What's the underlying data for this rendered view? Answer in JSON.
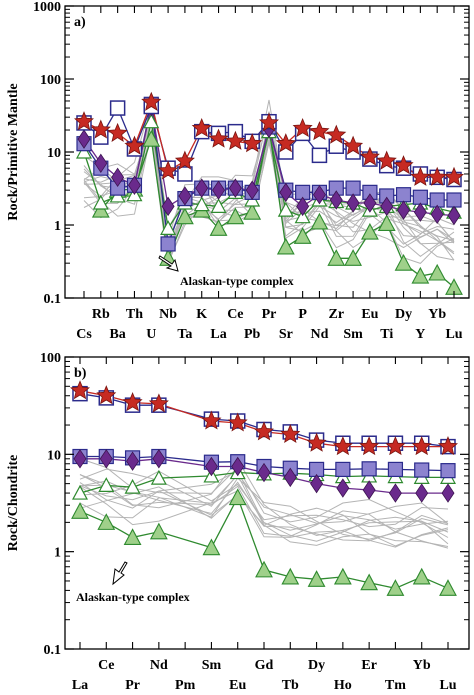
{
  "chart_data": [
    {
      "type": "line",
      "panel_label": "a)",
      "ylabel": "Rock/Primitive Mantle",
      "yscale": "log",
      "ylim": [
        0.1,
        1000
      ],
      "yticks": [
        "0.1",
        "1",
        "10",
        "100",
        "1000"
      ],
      "categories": [
        "Cs",
        "Rb",
        "Ba",
        "Th",
        "U",
        "Nb",
        "Ta",
        "K",
        "La",
        "Ce",
        "Pb",
        "Pr",
        "Sr",
        "P",
        "Nd",
        "Zr",
        "Sm",
        "Eu",
        "Ti",
        "Dy",
        "Y",
        "Yb",
        "Lu"
      ],
      "top_row_labels": [
        "Rb",
        "Th",
        "Nb",
        "K",
        "Ce",
        "Pr",
        "P",
        "Zr",
        "Eu",
        "Dy",
        "Yb"
      ],
      "bottom_row_labels": [
        "Cs",
        "Ba",
        "U",
        "Ta",
        "La",
        "Pb",
        "Sr",
        "Nd",
        "Sm",
        "Ti",
        "Y",
        "Lu"
      ],
      "annotation": "Alaskan-type complex",
      "colors": {
        "red": "#c62a22",
        "navy": "#2b2b8c",
        "purple": "#6a2a8c",
        "lavender": "#8c83cf",
        "green": "#2f8a2f",
        "lightgreen": "#9fd08a",
        "gray": "#b4b4b4"
      },
      "series": [
        {
          "style": "red-star",
          "values": [
            26,
            20,
            18,
            12,
            48,
            5.5,
            7.5,
            21,
            15,
            14,
            13,
            25,
            13,
            21,
            19,
            17,
            12,
            8.5,
            7.5,
            6.5,
            4.5,
            4.5,
            4.5
          ]
        },
        {
          "style": "navy-open-square",
          "values": [
            25,
            16,
            40,
            11,
            42,
            6,
            5,
            19,
            18,
            19,
            14,
            26,
            10,
            18,
            9,
            12,
            10,
            8,
            6.5,
            6,
            5,
            4.5,
            4.2
          ]
        },
        {
          "style": "purple-diamond",
          "values": [
            15,
            7,
            4.5,
            3.5,
            42,
            1.8,
            2.5,
            3.2,
            3,
            3.2,
            3,
            21,
            2.8,
            1.8,
            2.6,
            2.2,
            2.0,
            2.0,
            1.8,
            1.6,
            1.5,
            1.4,
            1.35
          ]
        },
        {
          "style": "lavender-filled-square",
          "values": [
            13,
            6,
            3.2,
            3.5,
            45,
            0.55,
            2.3,
            3.2,
            3.2,
            3.2,
            2.8,
            22,
            3,
            2.8,
            2.8,
            3.2,
            3.2,
            2.8,
            2.5,
            2.6,
            2.4,
            2.2,
            2.2
          ]
        },
        {
          "style": "green-open-triangle",
          "values": [
            10,
            2,
            2.5,
            2.6,
            26,
            0.9,
            2.0,
            1.9,
            1.8,
            2.8,
            2.2,
            19,
            1.6,
            1.3,
            2.2,
            2.1,
            2.0,
            1.6,
            1.8,
            1.9,
            2.0,
            1.7,
            1.5
          ]
        },
        {
          "style": "green-filled-triangle",
          "values": [
            null,
            1.6,
            3,
            3.1,
            15,
            0.35,
            1.3,
            1.6,
            0.9,
            1.3,
            1.5,
            22,
            0.5,
            0.7,
            1.1,
            0.35,
            0.35,
            0.8,
            1.05,
            0.3,
            0.2,
            0.22,
            0.14
          ]
        }
      ]
    },
    {
      "type": "line",
      "panel_label": "b)",
      "ylabel": "Rock/Chondrite",
      "yscale": "log",
      "ylim": [
        0.1,
        100
      ],
      "yticks": [
        "0.1",
        "1",
        "10",
        "100"
      ],
      "categories": [
        "La",
        "Ce",
        "Pr",
        "Nd",
        "Pm",
        "Sm",
        "Eu",
        "Gd",
        "Tb",
        "Dy",
        "Ho",
        "Er",
        "Tm",
        "Yb",
        "Lu"
      ],
      "top_row_labels": [
        "Ce",
        "Nd",
        "Sm",
        "Gd",
        "Dy",
        "Er",
        "Yb"
      ],
      "bottom_row_labels": [
        "La",
        "Pr",
        "Pm",
        "Eu",
        "Tb",
        "Ho",
        "Tm",
        "Lu"
      ],
      "annotation": "Alaskan-type complex",
      "series": [
        {
          "style": "red-star",
          "values": [
            45,
            40,
            34,
            33,
            null,
            22,
            21,
            17,
            16,
            13,
            12,
            12,
            12,
            12,
            12
          ]
        },
        {
          "style": "navy-open-square",
          "values": [
            42,
            38,
            32,
            32,
            null,
            23,
            22,
            18,
            17,
            14,
            13,
            13,
            13,
            13,
            12
          ]
        },
        {
          "style": "purple-diamond",
          "values": [
            9,
            9,
            8.5,
            9,
            null,
            7.5,
            7.5,
            6.5,
            5.8,
            5,
            4.5,
            4.3,
            4,
            4,
            4
          ]
        },
        {
          "style": "lavender-filled-square",
          "values": [
            9.5,
            9.5,
            9.2,
            9.5,
            null,
            8.3,
            8.4,
            7.5,
            7.2,
            7,
            7,
            7.1,
            7,
            6.9,
            6.8
          ]
        },
        {
          "style": "green-open-triangle",
          "values": [
            4,
            4.8,
            4.6,
            5.7,
            null,
            6,
            6.5,
            6.3,
            6.4,
            6.2,
            5.9,
            6,
            5.9,
            5.8,
            5.8
          ]
        },
        {
          "style": "green-filled-triangle",
          "values": [
            2.6,
            2,
            1.4,
            1.6,
            null,
            1.1,
            3.6,
            0.65,
            0.55,
            0.52,
            0.55,
            0.48,
            0.42,
            0.55,
            0.42
          ]
        }
      ]
    }
  ]
}
